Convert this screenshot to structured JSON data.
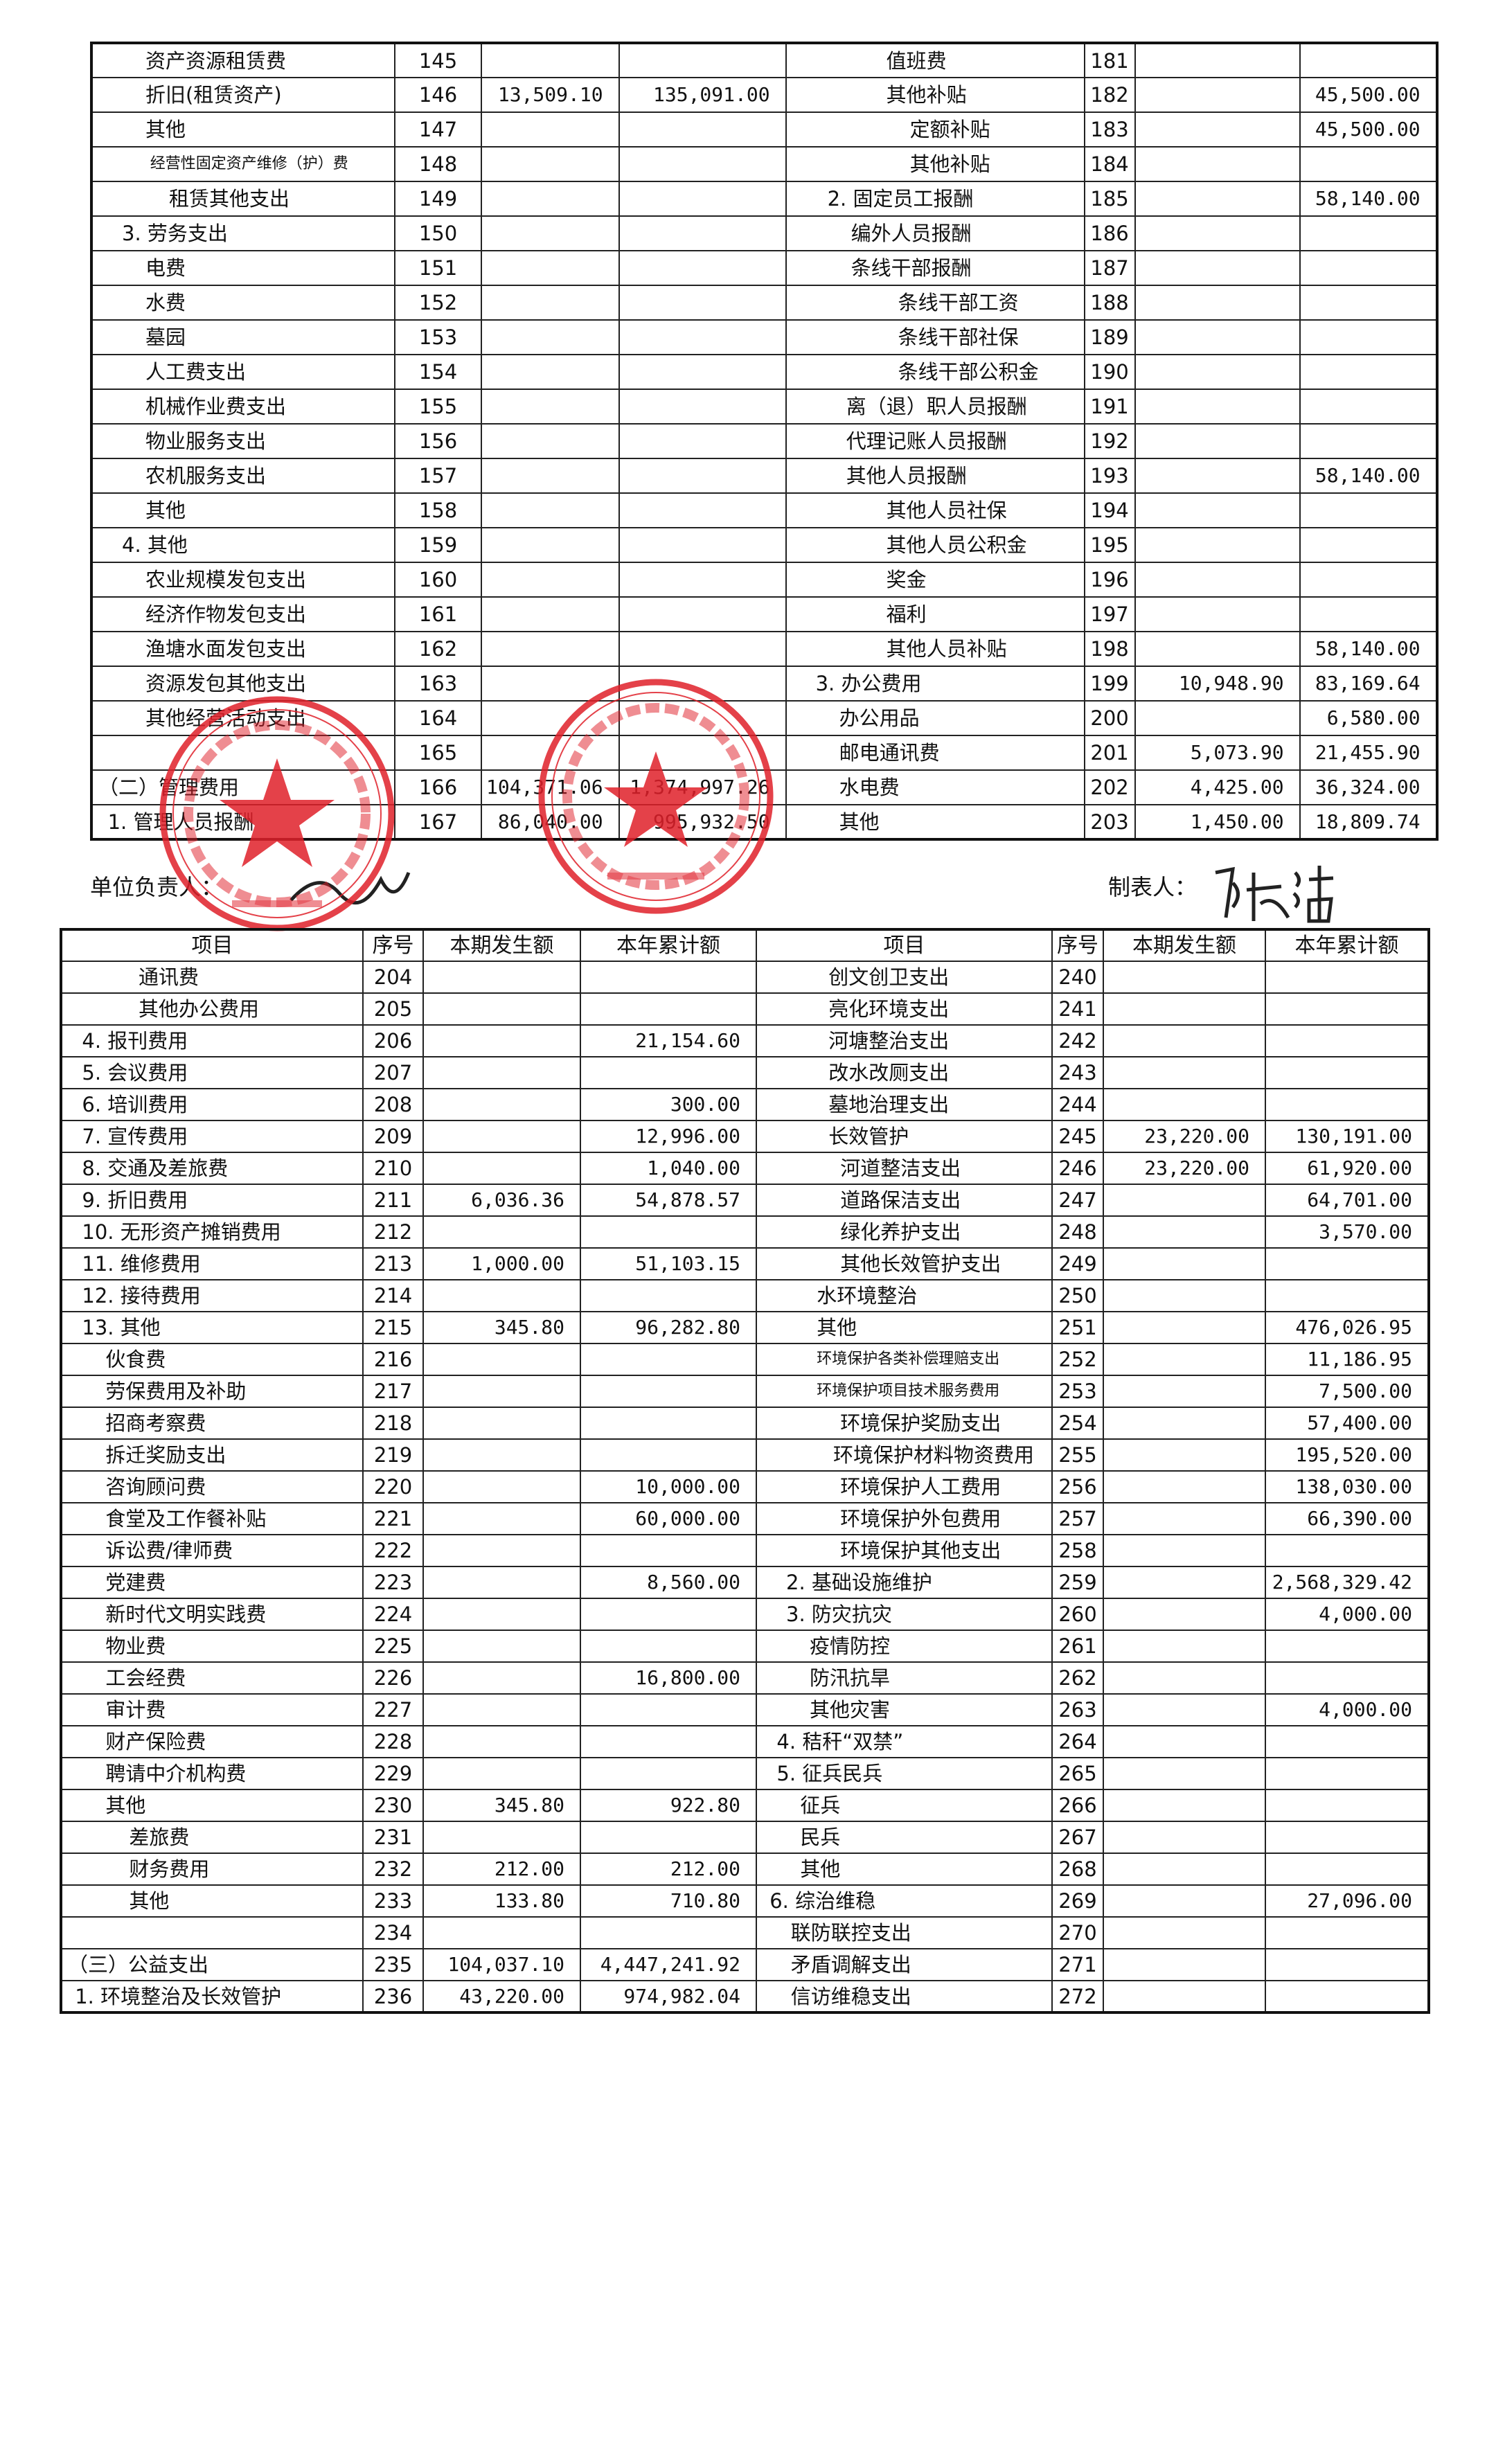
{
  "top_table": {
    "left_rows": [
      [
        "资产资源租赁费",
        "145",
        "",
        ""
      ],
      [
        "折旧(租赁资产)",
        "146",
        "13,509.10",
        "135,091.00"
      ],
      [
        "其他",
        "147",
        "",
        ""
      ],
      [
        "经营性固定资产维修（护）费",
        "148",
        "",
        ""
      ],
      [
        "租赁其他支出",
        "149",
        "",
        ""
      ],
      [
        "3. 劳务支出",
        "150",
        "",
        ""
      ],
      [
        "电费",
        "151",
        "",
        ""
      ],
      [
        "水费",
        "152",
        "",
        ""
      ],
      [
        "墓园",
        "153",
        "",
        ""
      ],
      [
        "人工费支出",
        "154",
        "",
        ""
      ],
      [
        "机械作业费支出",
        "155",
        "",
        ""
      ],
      [
        "物业服务支出",
        "156",
        "",
        ""
      ],
      [
        "农机服务支出",
        "157",
        "",
        ""
      ],
      [
        "其他",
        "158",
        "",
        ""
      ],
      [
        "4. 其他",
        "159",
        "",
        ""
      ],
      [
        "农业规模发包支出",
        "160",
        "",
        ""
      ],
      [
        "经济作物发包支出",
        "161",
        "",
        ""
      ],
      [
        "渔塘水面发包支出",
        "162",
        "",
        ""
      ],
      [
        "资源发包其他支出",
        "163",
        "",
        ""
      ],
      [
        "其他经营活动支出",
        "164",
        "",
        ""
      ],
      [
        "",
        "165",
        "",
        ""
      ],
      [
        "（二）管理费用",
        "166",
        "104,371.06",
        "1,374,997.26"
      ],
      [
        "1. 管理人员报酬",
        "167",
        "86,040.00",
        "995,932.50"
      ]
    ],
    "right_rows": [
      [
        "值班费",
        "181",
        "",
        ""
      ],
      [
        "其他补贴",
        "182",
        "",
        "45,500.00"
      ],
      [
        "定额补贴",
        "183",
        "",
        "45,500.00"
      ],
      [
        "其他补贴",
        "184",
        "",
        ""
      ],
      [
        "2. 固定员工报酬",
        "185",
        "",
        "58,140.00"
      ],
      [
        "编外人员报酬",
        "186",
        "",
        ""
      ],
      [
        "条线干部报酬",
        "187",
        "",
        ""
      ],
      [
        "条线干部工资",
        "188",
        "",
        ""
      ],
      [
        "条线干部社保",
        "189",
        "",
        ""
      ],
      [
        "条线干部公积金",
        "190",
        "",
        ""
      ],
      [
        "离（退）职人员报酬",
        "191",
        "",
        ""
      ],
      [
        "代理记账人员报酬",
        "192",
        "",
        ""
      ],
      [
        "其他人员报酬",
        "193",
        "",
        "58,140.00"
      ],
      [
        "其他人员社保",
        "194",
        "",
        ""
      ],
      [
        "其他人员公积金",
        "195",
        "",
        ""
      ],
      [
        "奖金",
        "196",
        "",
        ""
      ],
      [
        "福利",
        "197",
        "",
        ""
      ],
      [
        "其他人员补贴",
        "198",
        "",
        "58,140.00"
      ],
      [
        "3. 办公费用",
        "199",
        "10,948.90",
        "83,169.64"
      ],
      [
        "办公用品",
        "200",
        "",
        "6,580.00"
      ],
      [
        "邮电通讯费",
        "201",
        "5,073.90",
        "21,455.90"
      ],
      [
        "水电费",
        "202",
        "4,425.00",
        "36,324.00"
      ],
      [
        "其他",
        "203",
        "1,450.00",
        "18,809.74"
      ]
    ]
  },
  "signatures": {
    "unit_head_label": "单位负责人：",
    "preparer_label": "制表人：",
    "preparer_signature": "陈洁"
  },
  "stamps": {
    "left_text": "昆山市千灯镇石浦村村民委员会",
    "left_number": "3205831924011",
    "right_text": "昆山市千灯镇石浦村村务监督委员会",
    "right_number": "3205830470446",
    "color": "#e0202a"
  },
  "bottom_table": {
    "headers": [
      "项目",
      "序号",
      "本期发生额",
      "本年累计额",
      "项目",
      "序号",
      "本期发生额",
      "本年累计额"
    ],
    "left_rows": [
      [
        "通讯费",
        "204",
        "",
        ""
      ],
      [
        "其他办公费用",
        "205",
        "",
        ""
      ],
      [
        "4. 报刊费用",
        "206",
        "",
        "21,154.60"
      ],
      [
        "5. 会议费用",
        "207",
        "",
        ""
      ],
      [
        "6. 培训费用",
        "208",
        "",
        "300.00"
      ],
      [
        "7. 宣传费用",
        "209",
        "",
        "12,996.00"
      ],
      [
        "8. 交通及差旅费",
        "210",
        "",
        "1,040.00"
      ],
      [
        "9. 折旧费用",
        "211",
        "6,036.36",
        "54,878.57"
      ],
      [
        "10. 无形资产摊销费用",
        "212",
        "",
        ""
      ],
      [
        "11. 维修费用",
        "213",
        "1,000.00",
        "51,103.15"
      ],
      [
        "12. 接待费用",
        "214",
        "",
        ""
      ],
      [
        "13. 其他",
        "215",
        "345.80",
        "96,282.80"
      ],
      [
        "伙食费",
        "216",
        "",
        ""
      ],
      [
        "劳保费用及补助",
        "217",
        "",
        ""
      ],
      [
        "招商考察费",
        "218",
        "",
        ""
      ],
      [
        "拆迁奖励支出",
        "219",
        "",
        ""
      ],
      [
        "咨询顾问费",
        "220",
        "",
        "10,000.00"
      ],
      [
        "食堂及工作餐补贴",
        "221",
        "",
        "60,000.00"
      ],
      [
        "诉讼费/律师费",
        "222",
        "",
        ""
      ],
      [
        "党建费",
        "223",
        "",
        "8,560.00"
      ],
      [
        "新时代文明实践费",
        "224",
        "",
        ""
      ],
      [
        "物业费",
        "225",
        "",
        ""
      ],
      [
        "工会经费",
        "226",
        "",
        "16,800.00"
      ],
      [
        "审计费",
        "227",
        "",
        ""
      ],
      [
        "财产保险费",
        "228",
        "",
        ""
      ],
      [
        "聘请中介机构费",
        "229",
        "",
        ""
      ],
      [
        "其他",
        "230",
        "345.80",
        "922.80"
      ],
      [
        "差旅费",
        "231",
        "",
        ""
      ],
      [
        "财务费用",
        "232",
        "212.00",
        "212.00"
      ],
      [
        "其他",
        "233",
        "133.80",
        "710.80"
      ],
      [
        "",
        "234",
        "",
        ""
      ],
      [
        "（三）公益支出",
        "235",
        "104,037.10",
        "4,447,241.92"
      ],
      [
        "1. 环境整治及长效管护",
        "236",
        "43,220.00",
        "974,982.04"
      ]
    ],
    "right_rows": [
      [
        "创文创卫支出",
        "240",
        "",
        ""
      ],
      [
        "亮化环境支出",
        "241",
        "",
        ""
      ],
      [
        "河塘整治支出",
        "242",
        "",
        ""
      ],
      [
        "改水改厕支出",
        "243",
        "",
        ""
      ],
      [
        "墓地治理支出",
        "244",
        "",
        ""
      ],
      [
        "长效管护",
        "245",
        "23,220.00",
        "130,191.00"
      ],
      [
        "河道整洁支出",
        "246",
        "23,220.00",
        "61,920.00"
      ],
      [
        "道路保洁支出",
        "247",
        "",
        "64,701.00"
      ],
      [
        "绿化养护支出",
        "248",
        "",
        "3,570.00"
      ],
      [
        "其他长效管护支出",
        "249",
        "",
        ""
      ],
      [
        "水环境整治",
        "250",
        "",
        ""
      ],
      [
        "其他",
        "251",
        "",
        "476,026.95"
      ],
      [
        "环境保护各类补偿理赔支出",
        "252",
        "",
        "11,186.95"
      ],
      [
        "环境保护项目技术服务费用",
        "253",
        "",
        "7,500.00"
      ],
      [
        "环境保护奖励支出",
        "254",
        "",
        "57,400.00"
      ],
      [
        "环境保护材料物资费用",
        "255",
        "",
        "195,520.00"
      ],
      [
        "环境保护人工费用",
        "256",
        "",
        "138,030.00"
      ],
      [
        "环境保护外包费用",
        "257",
        "",
        "66,390.00"
      ],
      [
        "环境保护其他支出",
        "258",
        "",
        ""
      ],
      [
        "2. 基础设施维护",
        "259",
        "",
        "2,568,329.42"
      ],
      [
        "3. 防灾抗灾",
        "260",
        "",
        "4,000.00"
      ],
      [
        "疫情防控",
        "261",
        "",
        ""
      ],
      [
        "防汛抗旱",
        "262",
        "",
        ""
      ],
      [
        "其他灾害",
        "263",
        "",
        "4,000.00"
      ],
      [
        "4. 秸秆“双禁”",
        "264",
        "",
        ""
      ],
      [
        "5. 征兵民兵",
        "265",
        "",
        ""
      ],
      [
        "征兵",
        "266",
        "",
        ""
      ],
      [
        "民兵",
        "267",
        "",
        ""
      ],
      [
        "其他",
        "268",
        "",
        ""
      ],
      [
        "6. 综治维稳",
        "269",
        "",
        "27,096.00"
      ],
      [
        "联防联控支出",
        "270",
        "",
        ""
      ],
      [
        "矛盾调解支出",
        "271",
        "",
        ""
      ],
      [
        "信访维稳支出",
        "272",
        "",
        ""
      ]
    ]
  }
}
